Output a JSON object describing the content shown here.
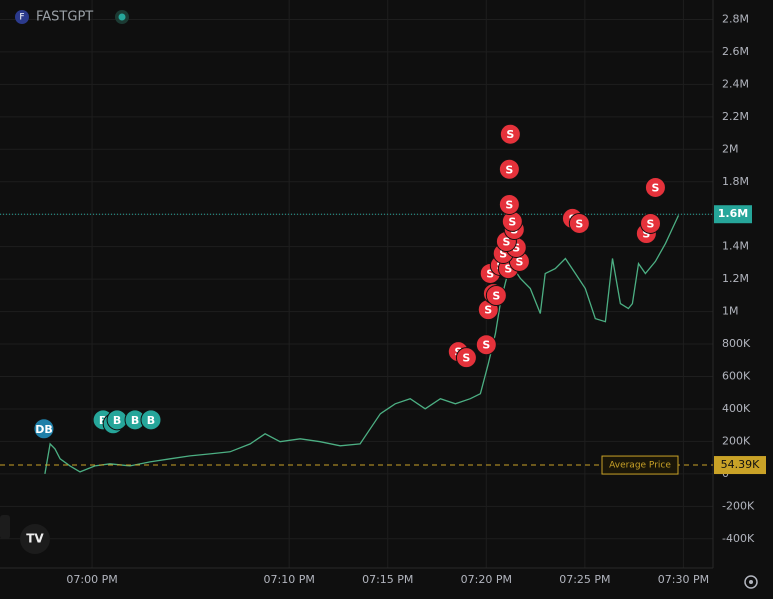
{
  "chart_data": {
    "type": "line",
    "title": "FASTGPT",
    "x": [
      -2.39,
      -2.13,
      -1.88,
      -1.62,
      -1.12,
      -0.61,
      0.15,
      0.91,
      1.93,
      2.94,
      3.96,
      4.97,
      5.99,
      7.0,
      8.02,
      8.78,
      9.54,
      10.56,
      11.57,
      12.59,
      13.6,
      14.11,
      14.62,
      15.38,
      16.14,
      16.9,
      17.67,
      18.43,
      19.19,
      19.7,
      20.1,
      20.46,
      20.71,
      20.96,
      21.22,
      21.73,
      22.23,
      22.74,
      22.99,
      23.5,
      24.01,
      24.52,
      25.02,
      25.53,
      26.04,
      26.4,
      26.8,
      27.21,
      27.41,
      27.72,
      28.07,
      28.58,
      29.09,
      29.44,
      29.75
    ],
    "series": [
      {
        "name": "FASTGPT",
        "color": "#4caf83",
        "values": [
          0,
          185000,
          154000,
          93000,
          49000,
          12000,
          49000,
          62000,
          49000,
          74000,
          93000,
          111000,
          123000,
          136000,
          185000,
          247000,
          198000,
          216000,
          198000,
          173000,
          185000,
          278000,
          370000,
          432000,
          463000,
          401000,
          463000,
          432000,
          463000,
          494000,
          679000,
          864000,
          1049000,
          1173000,
          1296000,
          1204000,
          1142000,
          988000,
          1235000,
          1265000,
          1327000,
          1235000,
          1142000,
          957000,
          938000,
          1327000,
          1049000,
          1019000,
          1049000,
          1296000,
          1235000,
          1309000,
          1420000,
          1512000,
          1593000
        ]
      }
    ],
    "trades": [
      {
        "label": "DB",
        "x": -2.44,
        "y": 278000,
        "color": "#1f7fa8"
      },
      {
        "label": "B",
        "x": 0.56,
        "y": 333000,
        "color": "#26a69a"
      },
      {
        "label": "B",
        "x": 1.07,
        "y": 309000,
        "color": "#26a69a"
      },
      {
        "label": "B",
        "x": 1.27,
        "y": 333000,
        "color": "#26a69a"
      },
      {
        "label": "B",
        "x": 2.18,
        "y": 333000,
        "color": "#26a69a"
      },
      {
        "label": "B",
        "x": 2.99,
        "y": 333000,
        "color": "#26a69a"
      },
      {
        "label": "S",
        "x": 18.58,
        "y": 753000,
        "color": "#e5323b"
      },
      {
        "label": "S",
        "x": 18.99,
        "y": 716000,
        "color": "#e5323b"
      },
      {
        "label": "S",
        "x": 20.0,
        "y": 796000,
        "color": "#e5323b"
      },
      {
        "label": "S",
        "x": 20.1,
        "y": 1012000,
        "color": "#e5323b"
      },
      {
        "label": "S",
        "x": 20.36,
        "y": 1111000,
        "color": "#e5323b"
      },
      {
        "label": "S",
        "x": 20.51,
        "y": 1099000,
        "color": "#e5323b"
      },
      {
        "label": "S",
        "x": 20.2,
        "y": 1235000,
        "color": "#e5323b"
      },
      {
        "label": "S",
        "x": 20.71,
        "y": 1284000,
        "color": "#e5323b"
      },
      {
        "label": "S",
        "x": 21.12,
        "y": 1265000,
        "color": "#e5323b"
      },
      {
        "label": "S",
        "x": 21.68,
        "y": 1309000,
        "color": "#e5323b"
      },
      {
        "label": "S",
        "x": 20.86,
        "y": 1358000,
        "color": "#e5323b"
      },
      {
        "label": "S",
        "x": 21.52,
        "y": 1395000,
        "color": "#e5323b"
      },
      {
        "label": "S",
        "x": 21.02,
        "y": 1432000,
        "color": "#e5323b"
      },
      {
        "label": "S",
        "x": 21.42,
        "y": 1506000,
        "color": "#e5323b"
      },
      {
        "label": "S",
        "x": 21.32,
        "y": 1556000,
        "color": "#e5323b"
      },
      {
        "label": "S",
        "x": 21.17,
        "y": 1660000,
        "color": "#e5323b"
      },
      {
        "label": "S",
        "x": 21.17,
        "y": 1877000,
        "color": "#e5323b"
      },
      {
        "label": "S",
        "x": 21.22,
        "y": 2093000,
        "color": "#e5323b"
      },
      {
        "label": "S",
        "x": 24.37,
        "y": 1574000,
        "color": "#e5323b"
      },
      {
        "label": "S",
        "x": 24.72,
        "y": 1543000,
        "color": "#e5323b"
      },
      {
        "label": "S",
        "x": 28.12,
        "y": 1481000,
        "color": "#e5323b"
      },
      {
        "label": "S",
        "x": 28.33,
        "y": 1543000,
        "color": "#e5323b"
      },
      {
        "label": "S",
        "x": 28.58,
        "y": 1765000,
        "color": "#e5323b"
      }
    ],
    "last_price": {
      "value": 1600000,
      "label": "1.6M",
      "color": "#26a69a"
    },
    "average_price": {
      "name": "Average Price",
      "value": 54390,
      "label": "54.39K",
      "color": "#c9a227"
    },
    "xlim": [
      -4.67,
      31.5
    ],
    "xticks": [
      {
        "value": 0,
        "label": "07:00 PM"
      },
      {
        "value": 10,
        "label": "07:10 PM"
      },
      {
        "value": 15,
        "label": "07:15 PM"
      },
      {
        "value": 20,
        "label": "07:20 PM"
      },
      {
        "value": 25,
        "label": "07:25 PM"
      },
      {
        "value": 30,
        "label": "07:30 PM"
      }
    ],
    "ylim": [
      -580000,
      2920000
    ],
    "yticks": [
      {
        "value": -400000,
        "label": "-400K"
      },
      {
        "value": -200000,
        "label": "-200K"
      },
      0,
      {
        "value": 200000,
        "label": "200K"
      },
      {
        "value": 400000,
        "label": "400K"
      },
      {
        "value": 600000,
        "label": "600K"
      },
      {
        "value": 800000,
        "label": "800K"
      },
      {
        "value": 1000000,
        "label": "1M"
      },
      {
        "value": 1200000,
        "label": "1.2M"
      },
      {
        "value": 1400000,
        "label": "1.4M"
      },
      {
        "value": 1600000,
        "label": "1.6M"
      },
      {
        "value": 1800000,
        "label": "1.8M"
      },
      {
        "value": 2000000,
        "label": "2M"
      },
      {
        "value": 2200000,
        "label": "2.2M"
      },
      {
        "value": 2400000,
        "label": "2.4M"
      },
      {
        "value": 2600000,
        "label": "2.6M"
      },
      {
        "value": 2800000,
        "label": "2.8M"
      }
    ],
    "grid": true
  }
}
